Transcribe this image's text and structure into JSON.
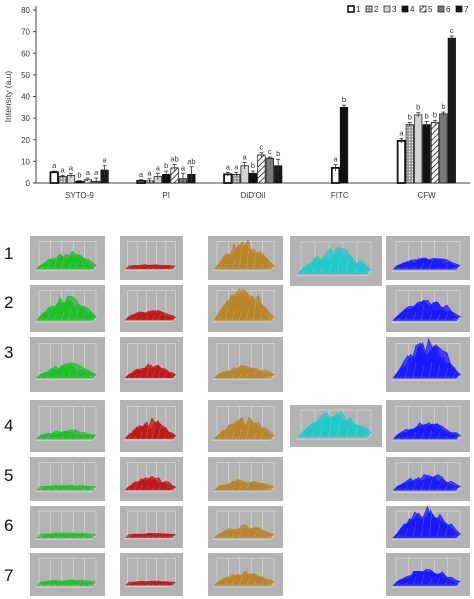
{
  "chart_data": {
    "type": "bar",
    "ylabel": "Intensity (a.u)",
    "ylim": [
      0,
      80
    ],
    "yticks": [
      0,
      10,
      20,
      30,
      40,
      50,
      60,
      70,
      80
    ],
    "categories": [
      "SYTO-9",
      "PI",
      "DiD'Oil",
      "FITC",
      "CFW"
    ],
    "legend": {
      "position": "top-right",
      "entries": [
        "1",
        "2",
        "3",
        "4",
        "5",
        "6",
        "7"
      ]
    },
    "series": [
      {
        "name": "1",
        "values": [
          5,
          1,
          4,
          7,
          19.5
        ],
        "errors": [
          0.5,
          0.5,
          0.8,
          1.5,
          1
        ],
        "labels": [
          "a",
          "a",
          "a",
          "a",
          "a"
        ],
        "color": "#ffffff",
        "pattern": "white-thick"
      },
      {
        "name": "2",
        "values": [
          3,
          1,
          4,
          null,
          27
        ],
        "errors": [
          0.5,
          1,
          0.8,
          null,
          1
        ],
        "labels": [
          "a",
          "a",
          "a",
          null,
          "b"
        ],
        "color": "#aaaaaa",
        "pattern": "dotted"
      },
      {
        "name": "3",
        "values": [
          3.5,
          3,
          8,
          null,
          31.5
        ],
        "errors": [
          1,
          1.5,
          1.5,
          null,
          1
        ],
        "labels": [
          "a",
          "a",
          "a",
          null,
          "b"
        ],
        "color": "#d4d4d4",
        "pattern": "light"
      },
      {
        "name": "4",
        "values": [
          0.8,
          4,
          4.5,
          35,
          27
        ],
        "errors": [
          0.3,
          1.5,
          1,
          1,
          1.5
        ],
        "labels": [
          "b",
          "b",
          "b",
          "b",
          "b"
        ],
        "color": "#111111",
        "pattern": "solid"
      },
      {
        "name": "5",
        "values": [
          1.5,
          7,
          13,
          null,
          28
        ],
        "errors": [
          0.8,
          1.5,
          1,
          null,
          1
        ],
        "labels": [
          "a",
          "ab",
          "c",
          null,
          "b"
        ],
        "color": "#ffffff",
        "pattern": "hatch"
      },
      {
        "name": "6",
        "values": [
          0.8,
          2,
          11.5,
          null,
          32
        ],
        "errors": [
          1.5,
          2.5,
          0.5,
          null,
          0.8
        ],
        "labels": [
          "a",
          "a",
          "c",
          null,
          "b"
        ],
        "color": "#7a7a7a",
        "pattern": "solid"
      },
      {
        "name": "7",
        "values": [
          6,
          4,
          8,
          null,
          67
        ],
        "errors": [
          2,
          3.5,
          3,
          null,
          1
        ],
        "labels": [
          "a",
          "ab",
          "b",
          null,
          "c"
        ],
        "color": "#1a1a1a",
        "pattern": "solid"
      }
    ]
  },
  "colors": {
    "panel_bg": "#b3b3b3",
    "SYTO-9": "#1fbf2a",
    "PI": "#c01818",
    "DiD'Oil": "#b8862a",
    "FITC": "#22c8c8",
    "CFW": "#1a1aff"
  },
  "row_labels": [
    "1",
    "2",
    "3",
    "4",
    "5",
    "6",
    "7"
  ],
  "surface_panels": [
    {
      "column": "SYTO-9",
      "rows": [
        {
          "row": "1",
          "intensity": 0.45
        },
        {
          "row": "2",
          "intensity": 0.6
        },
        {
          "row": "3",
          "intensity": 0.3
        },
        {
          "row": "4",
          "intensity": 0.15
        },
        {
          "row": "5",
          "intensity": 0.05
        },
        {
          "row": "6",
          "intensity": 0.05
        },
        {
          "row": "7",
          "intensity": 0.08
        }
      ]
    },
    {
      "column": "PI",
      "rows": [
        {
          "row": "1",
          "intensity": 0.05
        },
        {
          "row": "2",
          "intensity": 0.25
        },
        {
          "row": "3",
          "intensity": 0.3
        },
        {
          "row": "4",
          "intensity": 0.45
        },
        {
          "row": "5",
          "intensity": 0.35
        },
        {
          "row": "6",
          "intensity": 0.05
        },
        {
          "row": "7",
          "intensity": 0.05
        }
      ]
    },
    {
      "column": "DiD'Oil",
      "rows": [
        {
          "row": "1",
          "intensity": 0.85
        },
        {
          "row": "2",
          "intensity": 0.9
        },
        {
          "row": "3",
          "intensity": 0.25
        },
        {
          "row": "4",
          "intensity": 0.5
        },
        {
          "row": "5",
          "intensity": 0.25
        },
        {
          "row": "6",
          "intensity": 0.3
        },
        {
          "row": "7",
          "intensity": 0.35
        }
      ]
    },
    {
      "column": "FITC",
      "rows": [
        {
          "row": "1",
          "intensity": 0.6
        },
        {
          "row": "4",
          "intensity": 0.75
        }
      ]
    },
    {
      "column": "CFW",
      "rows": [
        {
          "row": "1",
          "intensity": 0.3
        },
        {
          "row": "2",
          "intensity": 0.55
        },
        {
          "row": "3",
          "intensity": 0.85
        },
        {
          "row": "4",
          "intensity": 0.35
        },
        {
          "row": "5",
          "intensity": 0.4
        },
        {
          "row": "6",
          "intensity": 0.9
        },
        {
          "row": "7",
          "intensity": 0.45
        }
      ]
    }
  ]
}
